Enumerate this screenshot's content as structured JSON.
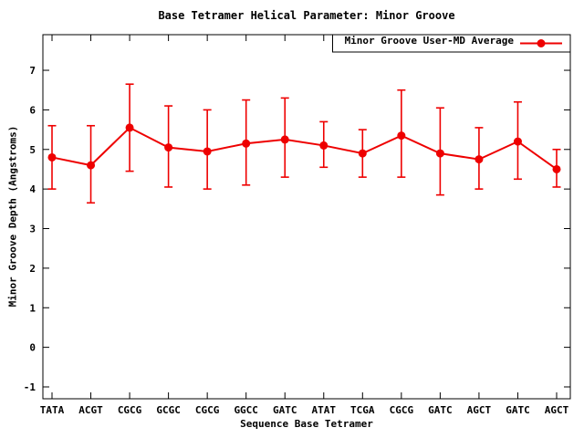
{
  "chart_data": {
    "type": "line",
    "title": "Base Tetramer Helical Parameter: Minor Groove",
    "xlabel": "Sequence Base Tetramer",
    "ylabel": "Minor Groove Depth (Angstroms)",
    "legend": {
      "label": "Minor Groove User-MD Average",
      "position": "top-right"
    },
    "series_color": "#ee0000",
    "grid": false,
    "categories": [
      "TATA",
      "ACGT",
      "CGCG",
      "GCGC",
      "CGCG",
      "GGCC",
      "GATC",
      "ATAT",
      "TCGA",
      "CGCG",
      "GATC",
      "AGCT",
      "GATC",
      "AGCT"
    ],
    "values": [
      4.8,
      4.6,
      5.55,
      5.05,
      4.95,
      5.15,
      5.25,
      5.1,
      4.9,
      5.35,
      4.9,
      4.75,
      5.2,
      4.5
    ],
    "error_low": [
      4.0,
      3.65,
      4.45,
      4.05,
      4.0,
      4.1,
      4.3,
      4.55,
      4.3,
      4.3,
      3.85,
      4.0,
      4.25,
      4.05
    ],
    "error_high": [
      5.6,
      5.6,
      6.65,
      6.1,
      6.0,
      6.25,
      6.3,
      5.7,
      5.5,
      6.5,
      6.05,
      5.55,
      6.2,
      5.0
    ],
    "y_ticks": [
      -1,
      0,
      1,
      2,
      3,
      4,
      5,
      6,
      7
    ],
    "ylim": [
      -1.3,
      7.9
    ]
  }
}
